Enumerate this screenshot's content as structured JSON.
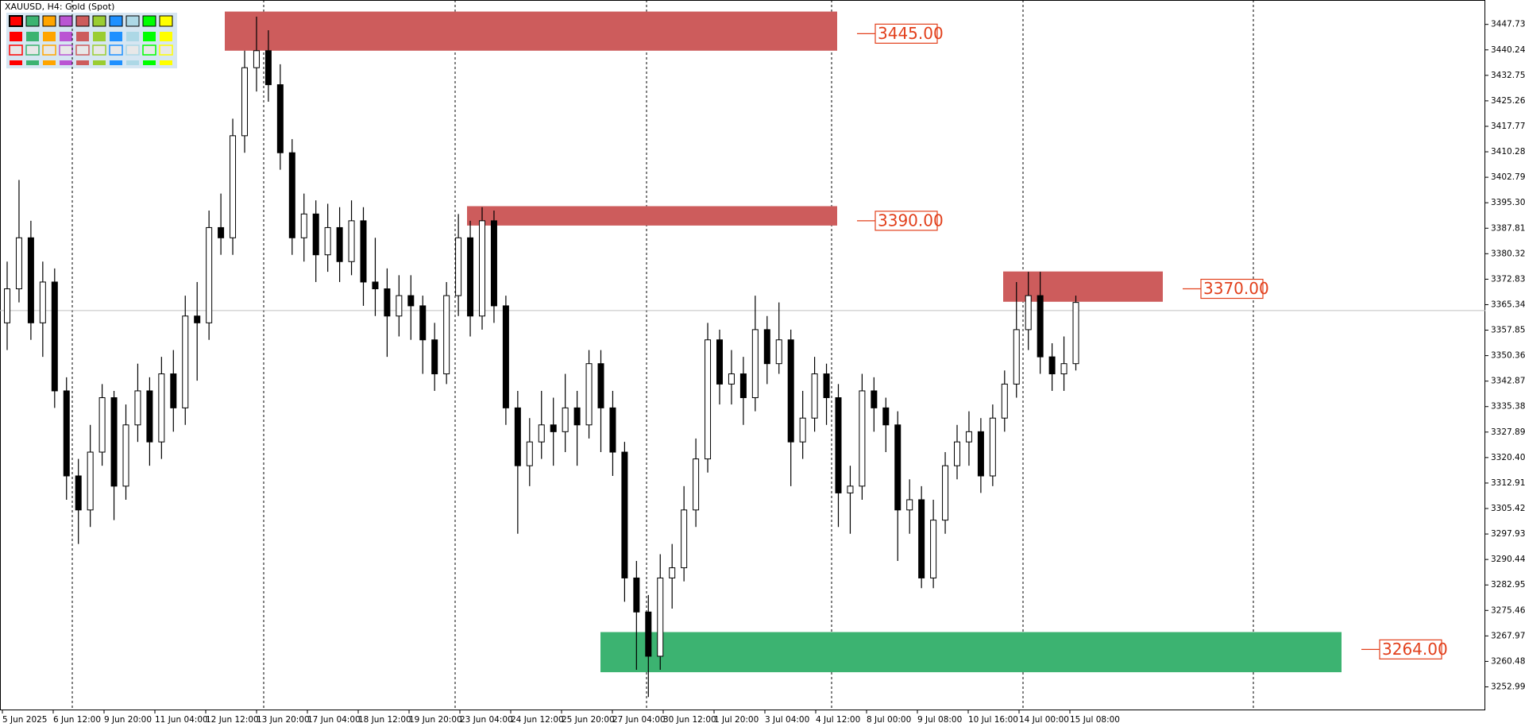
{
  "chart_data": {
    "type": "candlestick",
    "title": "XAUUSD, H4:  Gold (Spot)",
    "ylim": [
      3246.1,
      3454.9
    ],
    "yticks": [
      3447.73,
      3440.24,
      3432.75,
      3425.26,
      3417.77,
      3410.28,
      3402.79,
      {
        "value": 3395.3,
        "label": "3395.30"
      },
      3387.81,
      3380.32,
      3372.83,
      3365.34,
      3357.85,
      3350.36,
      3342.87,
      3335.38,
      3327.89,
      {
        "value": 3320.4,
        "label": "3320.40"
      },
      3312.91,
      3305.42,
      3297.93,
      3290.44,
      3282.95,
      3275.46,
      3267.97,
      3260.48,
      3252.99
    ],
    "x_labels": [
      "5 Jun 2025",
      "6 Jun 12:00",
      "9 Jun 20:00",
      "11 Jun 04:00",
      "12 Jun 12:00",
      "13 Jun 20:00",
      "17 Jun 04:00",
      "18 Jun 12:00",
      "19 Jun 20:00",
      "23 Jun 04:00",
      "24 Jun 12:00",
      "25 Jun 20:00",
      "27 Jun 04:00",
      "30 Jun 12:00",
      "1 Jul 20:00",
      "3 Jul 04:00",
      "4 Jul 12:00",
      "8 Jul 00:00",
      "9 Jul 08:00",
      "10 Jul 16:00",
      "14 Jul 00:00",
      "15 Jul 08:00"
    ],
    "current_price": 3363.6,
    "up_color": "#ffffff",
    "down_color": "#000000",
    "candles": [
      [
        3360,
        3378,
        3352,
        3370
      ],
      [
        3370,
        3402,
        3366,
        3385
      ],
      [
        3385,
        3390,
        3355,
        3360
      ],
      [
        3360,
        3378,
        3350,
        3372
      ],
      [
        3372,
        3376,
        3335,
        3340
      ],
      [
        3340,
        3344,
        3308,
        3315
      ],
      [
        3315,
        3320,
        3295,
        3305
      ],
      [
        3305,
        3330,
        3300,
        3322
      ],
      [
        3322,
        3342,
        3318,
        3338
      ],
      [
        3338,
        3340,
        3302,
        3312
      ],
      [
        3312,
        3336,
        3308,
        3330
      ],
      [
        3330,
        3348,
        3325,
        3340
      ],
      [
        3340,
        3344,
        3318,
        3325
      ],
      [
        3325,
        3350,
        3320,
        3345
      ],
      [
        3345,
        3352,
        3328,
        3335
      ],
      [
        3335,
        3368,
        3330,
        3362
      ],
      [
        3362,
        3372,
        3343,
        3360
      ],
      [
        3360,
        3393,
        3355,
        3388
      ],
      [
        3388,
        3398,
        3380,
        3385
      ],
      [
        3385,
        3420,
        3380,
        3415
      ],
      [
        3415,
        3440,
        3410,
        3435
      ],
      [
        3435,
        3450,
        3428,
        3440
      ],
      [
        3440,
        3446,
        3425,
        3430
      ],
      [
        3430,
        3436,
        3405,
        3410
      ],
      [
        3410,
        3414,
        3380,
        3385
      ],
      [
        3385,
        3398,
        3378,
        3392
      ],
      [
        3392,
        3396,
        3372,
        3380
      ],
      [
        3380,
        3395,
        3375,
        3388
      ],
      [
        3388,
        3394,
        3372,
        3378
      ],
      [
        3378,
        3396,
        3374,
        3390
      ],
      [
        3390,
        3394,
        3365,
        3372
      ],
      [
        3372,
        3385,
        3362,
        3370
      ],
      [
        3370,
        3376,
        3350,
        3362
      ],
      [
        3362,
        3374,
        3356,
        3368
      ],
      [
        3368,
        3374,
        3355,
        3365
      ],
      [
        3365,
        3368,
        3345,
        3355
      ],
      [
        3355,
        3360,
        3340,
        3345
      ],
      [
        3345,
        3372,
        3342,
        3368
      ],
      [
        3368,
        3392,
        3362,
        3385
      ],
      [
        3385,
        3390,
        3356,
        3362
      ],
      [
        3362,
        3394,
        3358,
        3390
      ],
      [
        3390,
        3393,
        3360,
        3365
      ],
      [
        3365,
        3368,
        3330,
        3335
      ],
      [
        3335,
        3340,
        3298,
        3318
      ],
      [
        3318,
        3332,
        3312,
        3325
      ],
      [
        3325,
        3340,
        3320,
        3330
      ],
      [
        3330,
        3338,
        3318,
        3328
      ],
      [
        3328,
        3345,
        3322,
        3335
      ],
      [
        3335,
        3340,
        3318,
        3330
      ],
      [
        3330,
        3352,
        3326,
        3348
      ],
      [
        3348,
        3352,
        3322,
        3335
      ],
      [
        3335,
        3340,
        3315,
        3322
      ],
      [
        3322,
        3325,
        3278,
        3285
      ],
      [
        3285,
        3290,
        3258,
        3275
      ],
      [
        3275,
        3280,
        3250,
        3262
      ],
      [
        3262,
        3292,
        3258,
        3285
      ],
      [
        3285,
        3295,
        3276,
        3288
      ],
      [
        3288,
        3312,
        3284,
        3305
      ],
      [
        3305,
        3326,
        3300,
        3320
      ],
      [
        3320,
        3360,
        3316,
        3355
      ],
      [
        3355,
        3358,
        3336,
        3342
      ],
      [
        3342,
        3352,
        3336,
        3345
      ],
      [
        3345,
        3350,
        3330,
        3338
      ],
      [
        3338,
        3368,
        3334,
        3358
      ],
      [
        3358,
        3362,
        3342,
        3348
      ],
      [
        3348,
        3366,
        3345,
        3355
      ],
      [
        3355,
        3358,
        3312,
        3325
      ],
      [
        3325,
        3340,
        3320,
        3332
      ],
      [
        3332,
        3350,
        3328,
        3345
      ],
      [
        3345,
        3348,
        3330,
        3338
      ],
      [
        3338,
        3342,
        3300,
        3310
      ],
      [
        3310,
        3318,
        3298,
        3312
      ],
      [
        3312,
        3345,
        3308,
        3340
      ],
      [
        3340,
        3344,
        3328,
        3335
      ],
      [
        3335,
        3338,
        3322,
        3330
      ],
      [
        3330,
        3334,
        3290,
        3305
      ],
      [
        3305,
        3314,
        3298,
        3308
      ],
      [
        3308,
        3312,
        3282,
        3285
      ],
      [
        3285,
        3308,
        3282,
        3302
      ],
      [
        3302,
        3322,
        3298,
        3318
      ],
      [
        3318,
        3330,
        3314,
        3325
      ],
      [
        3325,
        3334,
        3318,
        3328
      ],
      [
        3328,
        3332,
        3310,
        3315
      ],
      [
        3315,
        3336,
        3312,
        3332
      ],
      [
        3332,
        3346,
        3328,
        3342
      ],
      [
        3342,
        3372,
        3338,
        3358
      ],
      [
        3358,
        3375,
        3352,
        3368
      ],
      [
        3368,
        3375,
        3345,
        3350
      ],
      [
        3350,
        3354,
        3340,
        3345
      ],
      [
        3345,
        3356,
        3340,
        3348
      ],
      [
        3348,
        3368,
        3346,
        3366
      ]
    ],
    "zones": [
      {
        "value": 3445,
        "label": "3445.00",
        "top": 3451.5,
        "bottom": 3440.0,
        "color": "#cd5c5c"
      },
      {
        "value": 3390,
        "label": "3390.00",
        "top": 3394.3,
        "bottom": 3388.6,
        "color": "#cd5c5c"
      },
      {
        "value": 3370,
        "label": "3370.00",
        "top": 3375.1,
        "bottom": 3366.2,
        "color": "#cd5c5c"
      },
      {
        "value": 3264,
        "label": "3264.00",
        "top": 3269.1,
        "bottom": 3257.3,
        "color": "#3cb371"
      }
    ]
  }
}
